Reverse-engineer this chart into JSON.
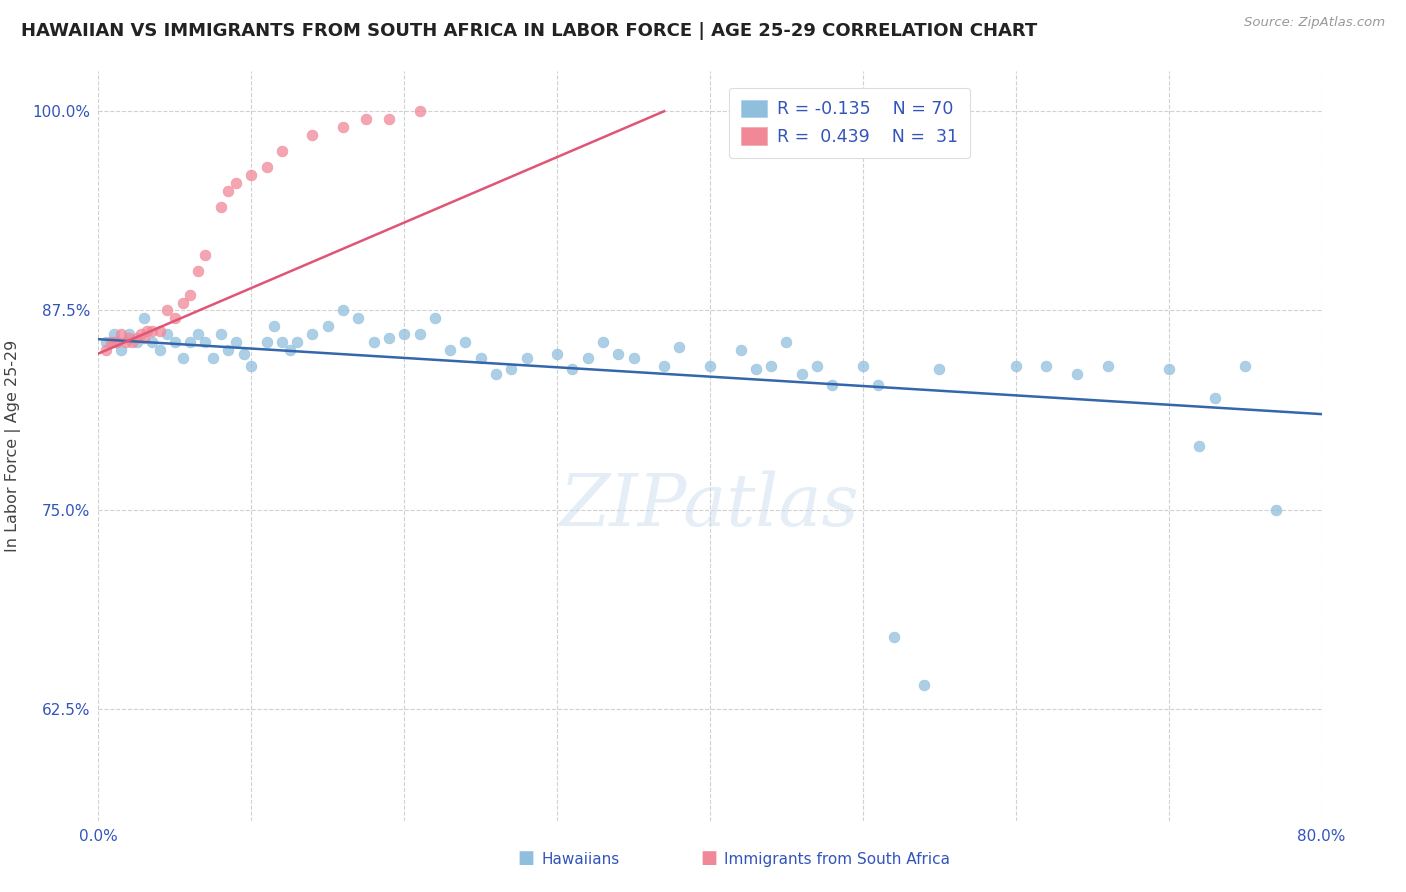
{
  "title": "HAWAIIAN VS IMMIGRANTS FROM SOUTH AFRICA IN LABOR FORCE | AGE 25-29 CORRELATION CHART",
  "source": "Source: ZipAtlas.com",
  "ylabel": "In Labor Force | Age 25-29",
  "xlim": [
    0.0,
    0.8
  ],
  "ylim": [
    0.555,
    1.025
  ],
  "legend_R_hawaiian": "-0.135",
  "legend_N_hawaiian": "70",
  "legend_R_south_africa": "0.439",
  "legend_N_south_africa": "31",
  "hawaiian_color": "#90bfdd",
  "south_africa_color": "#f08898",
  "trend_hawaiian_color": "#3366aa",
  "trend_south_africa_color": "#e05575",
  "watermark_text": "ZIPatlas",
  "watermark_color": "#ccdcee",
  "grid_color": "#cccccc",
  "title_color": "#222222",
  "tick_color": "#3355bb",
  "ylabel_color": "#444444",
  "bottom_label_hawaiians": "Hawaiians",
  "bottom_label_sa": "Immigrants from South Africa",
  "hawaiian_x": [
    0.005,
    0.01,
    0.015,
    0.02,
    0.025,
    0.03,
    0.035,
    0.04,
    0.045,
    0.05,
    0.055,
    0.06,
    0.065,
    0.07,
    0.075,
    0.08,
    0.085,
    0.09,
    0.095,
    0.1,
    0.11,
    0.115,
    0.12,
    0.125,
    0.13,
    0.14,
    0.15,
    0.16,
    0.17,
    0.18,
    0.19,
    0.2,
    0.21,
    0.22,
    0.23,
    0.24,
    0.25,
    0.26,
    0.27,
    0.28,
    0.3,
    0.31,
    0.32,
    0.33,
    0.34,
    0.35,
    0.37,
    0.38,
    0.4,
    0.42,
    0.43,
    0.44,
    0.45,
    0.46,
    0.47,
    0.48,
    0.5,
    0.51,
    0.52,
    0.54,
    0.55,
    0.6,
    0.62,
    0.64,
    0.66,
    0.7,
    0.72,
    0.73,
    0.75,
    0.77
  ],
  "hawaiian_y": [
    0.855,
    0.86,
    0.85,
    0.86,
    0.855,
    0.87,
    0.855,
    0.85,
    0.86,
    0.855,
    0.845,
    0.855,
    0.86,
    0.855,
    0.845,
    0.86,
    0.85,
    0.855,
    0.848,
    0.84,
    0.855,
    0.865,
    0.855,
    0.85,
    0.855,
    0.86,
    0.865,
    0.875,
    0.87,
    0.855,
    0.858,
    0.86,
    0.86,
    0.87,
    0.85,
    0.855,
    0.845,
    0.835,
    0.838,
    0.845,
    0.848,
    0.838,
    0.845,
    0.855,
    0.848,
    0.845,
    0.84,
    0.852,
    0.84,
    0.85,
    0.838,
    0.84,
    0.855,
    0.835,
    0.84,
    0.828,
    0.84,
    0.828,
    0.67,
    0.64,
    0.838,
    0.84,
    0.84,
    0.835,
    0.84,
    0.838,
    0.79,
    0.82,
    0.84,
    0.75
  ],
  "south_africa_x": [
    0.005,
    0.008,
    0.01,
    0.012,
    0.015,
    0.018,
    0.02,
    0.022,
    0.025,
    0.028,
    0.03,
    0.032,
    0.035,
    0.04,
    0.045,
    0.05,
    0.055,
    0.06,
    0.065,
    0.07,
    0.08,
    0.085,
    0.09,
    0.1,
    0.11,
    0.12,
    0.14,
    0.16,
    0.175,
    0.19,
    0.21
  ],
  "south_africa_y": [
    0.85,
    0.855,
    0.855,
    0.855,
    0.86,
    0.855,
    0.858,
    0.855,
    0.858,
    0.86,
    0.858,
    0.862,
    0.862,
    0.862,
    0.875,
    0.87,
    0.88,
    0.885,
    0.9,
    0.91,
    0.94,
    0.95,
    0.955,
    0.96,
    0.965,
    0.975,
    0.985,
    0.99,
    0.995,
    0.995,
    1.0
  ],
  "haw_trend_x0": 0.0,
  "haw_trend_x1": 0.8,
  "haw_trend_y0": 0.857,
  "haw_trend_y1": 0.81,
  "sa_trend_x0": 0.0,
  "sa_trend_x1": 0.37,
  "sa_trend_y0": 0.848,
  "sa_trend_y1": 1.0
}
